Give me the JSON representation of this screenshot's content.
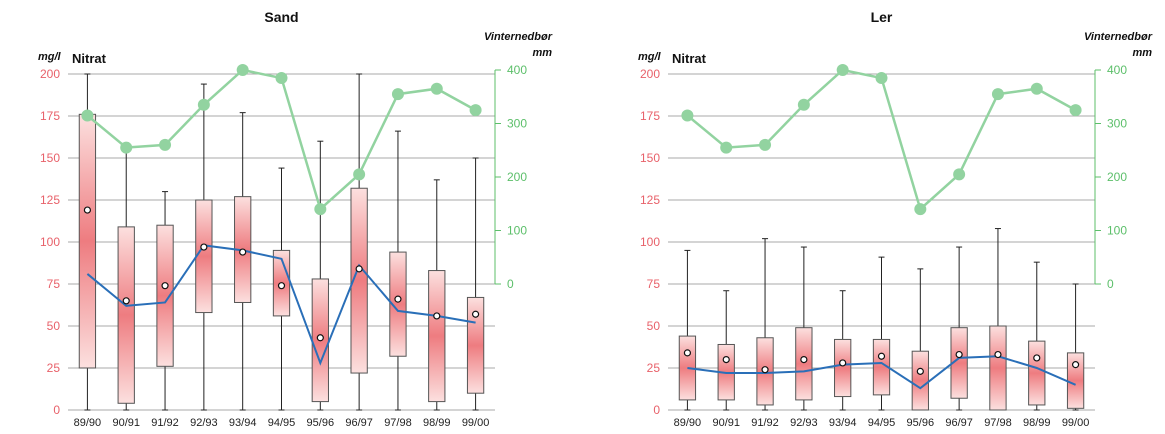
{
  "chart_data": [
    {
      "type": "box",
      "title": "Sand",
      "series_label": "Nitrat",
      "ylabel_left": "mg/l",
      "ylabel_right_line1": "Vinternedbør",
      "ylabel_right_line2": "mm",
      "ylim_left": [
        0,
        200
      ],
      "ylim_right": [
        0,
        400
      ],
      "yticks_left": [
        "0",
        "25",
        "50",
        "75",
        "100",
        "125",
        "150",
        "175",
        "200"
      ],
      "yticks_right": [
        "0",
        "100",
        "200",
        "300",
        "400"
      ],
      "categories": [
        "89/90",
        "90/91",
        "91/92",
        "92/93",
        "93/94",
        "94/95",
        "95/96",
        "96/97",
        "97/98",
        "98/99",
        "99/00"
      ],
      "boxes": [
        {
          "min": 0,
          "q1": 25,
          "q3": 176,
          "max": 200,
          "mean": 119
        },
        {
          "min": 0,
          "q1": 4,
          "q3": 109,
          "max": 156,
          "mean": 65
        },
        {
          "min": 0,
          "q1": 26,
          "q3": 110,
          "max": 130,
          "mean": 74
        },
        {
          "min": 0,
          "q1": 58,
          "q3": 125,
          "max": 194,
          "mean": 97
        },
        {
          "min": 0,
          "q1": 64,
          "q3": 127,
          "max": 177,
          "mean": 94
        },
        {
          "min": 0,
          "q1": 56,
          "q3": 95,
          "max": 144,
          "mean": 74
        },
        {
          "min": 0,
          "q1": 5,
          "q3": 78,
          "max": 160,
          "mean": 43
        },
        {
          "min": 0,
          "q1": 22,
          "q3": 132,
          "max": 200,
          "mean": 84
        },
        {
          "min": 0,
          "q1": 32,
          "q3": 94,
          "max": 166,
          "mean": 66
        },
        {
          "min": 0,
          "q1": 5,
          "q3": 83,
          "max": 137,
          "mean": 56
        },
        {
          "min": 0,
          "q1": 10,
          "q3": 67,
          "max": 150,
          "mean": 57
        }
      ],
      "median_line": [
        81,
        62,
        64,
        98,
        95,
        90,
        28,
        86,
        59,
        56,
        52
      ],
      "precipitation": [
        315,
        255,
        260,
        335,
        400,
        385,
        140,
        205,
        355,
        365,
        325
      ]
    },
    {
      "type": "box",
      "title": "Ler",
      "series_label": "Nitrat",
      "ylabel_left": "mg/l",
      "ylabel_right_line1": "Vinternedbør",
      "ylabel_right_line2": "mm",
      "ylim_left": [
        0,
        200
      ],
      "ylim_right": [
        0,
        400
      ],
      "yticks_left": [
        "0",
        "25",
        "50",
        "75",
        "100",
        "125",
        "150",
        "175",
        "200"
      ],
      "yticks_right": [
        "0",
        "100",
        "200",
        "300",
        "400"
      ],
      "categories": [
        "89/90",
        "90/91",
        "91/92",
        "92/93",
        "93/94",
        "94/95",
        "95/96",
        "96/97",
        "97/98",
        "98/99",
        "99/00"
      ],
      "boxes": [
        {
          "min": 0,
          "q1": 6,
          "q3": 44,
          "max": 95,
          "mean": 34
        },
        {
          "min": 0,
          "q1": 6,
          "q3": 39,
          "max": 71,
          "mean": 30
        },
        {
          "min": 0,
          "q1": 3,
          "q3": 43,
          "max": 102,
          "mean": 24
        },
        {
          "min": 0,
          "q1": 6,
          "q3": 49,
          "max": 97,
          "mean": 30
        },
        {
          "min": 0,
          "q1": 8,
          "q3": 42,
          "max": 71,
          "mean": 28
        },
        {
          "min": 0,
          "q1": 9,
          "q3": 42,
          "max": 91,
          "mean": 32
        },
        {
          "min": 0,
          "q1": 0,
          "q3": 35,
          "max": 84,
          "mean": 23
        },
        {
          "min": 0,
          "q1": 7,
          "q3": 49,
          "max": 97,
          "mean": 33
        },
        {
          "min": 0,
          "q1": 0,
          "q3": 50,
          "max": 108,
          "mean": 33
        },
        {
          "min": 0,
          "q1": 3,
          "q3": 41,
          "max": 88,
          "mean": 31
        },
        {
          "min": 0,
          "q1": 1,
          "q3": 34,
          "max": 75,
          "mean": 27
        }
      ],
      "median_line": [
        25,
        22,
        22,
        23,
        27,
        28,
        13,
        31,
        32,
        25,
        15
      ],
      "precipitation": [
        315,
        255,
        260,
        335,
        400,
        385,
        140,
        205,
        355,
        365,
        325
      ]
    }
  ],
  "colors": {
    "box_edge": "#e8616a",
    "box_center": "#fbe3e2",
    "median_line": "#2a6fb8",
    "precip": "#92d3a0",
    "left_axis": "#e8616a",
    "right_axis": "#5cbf6a"
  }
}
